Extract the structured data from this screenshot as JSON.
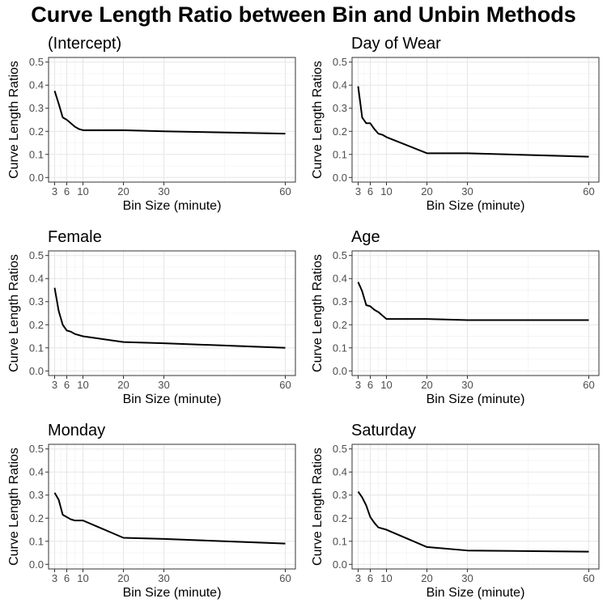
{
  "title": "Curve Length Ratio between Bin and Unbin Methods",
  "chart_data": [
    {
      "type": "line",
      "title": "(Intercept)",
      "xlabel": "Bin Size (minute)",
      "ylabel": "Curve Length Ratios",
      "x_ticks": [
        3,
        6,
        10,
        20,
        30,
        60
      ],
      "y_ticks": [
        "0.0",
        "0.1",
        "0.2",
        "0.3",
        "0.4",
        "0.5"
      ],
      "xlim": [
        1.5,
        62.5
      ],
      "ylim": [
        -0.02,
        0.52
      ],
      "grid": true,
      "x": [
        3,
        4,
        5,
        6,
        7,
        8,
        9,
        10,
        20,
        30,
        60
      ],
      "y": [
        0.375,
        0.32,
        0.26,
        0.25,
        0.235,
        0.22,
        0.21,
        0.205,
        0.205,
        0.2,
        0.19
      ]
    },
    {
      "type": "line",
      "title": "Day of Wear",
      "xlabel": "Bin Size (minute)",
      "ylabel": "Curve Length Ratios",
      "x_ticks": [
        3,
        6,
        10,
        20,
        30,
        60
      ],
      "y_ticks": [
        "0.0",
        "0.1",
        "0.2",
        "0.3",
        "0.4",
        "0.5"
      ],
      "xlim": [
        1.5,
        62.5
      ],
      "ylim": [
        -0.02,
        0.52
      ],
      "grid": true,
      "x": [
        3,
        4,
        5,
        6,
        7,
        8,
        9,
        10,
        20,
        30,
        60
      ],
      "y": [
        0.395,
        0.26,
        0.235,
        0.235,
        0.21,
        0.19,
        0.185,
        0.175,
        0.105,
        0.105,
        0.09
      ]
    },
    {
      "type": "line",
      "title": "Female",
      "xlabel": "Bin Size (minute)",
      "ylabel": "Curve Length Ratios",
      "x_ticks": [
        3,
        6,
        10,
        20,
        30,
        60
      ],
      "y_ticks": [
        "0.0",
        "0.1",
        "0.2",
        "0.3",
        "0.4",
        "0.5"
      ],
      "xlim": [
        1.5,
        62.5
      ],
      "ylim": [
        -0.02,
        0.52
      ],
      "grid": true,
      "x": [
        3,
        4,
        5,
        6,
        7,
        8,
        9,
        10,
        20,
        30,
        60
      ],
      "y": [
        0.36,
        0.26,
        0.2,
        0.175,
        0.17,
        0.16,
        0.155,
        0.15,
        0.125,
        0.12,
        0.1
      ]
    },
    {
      "type": "line",
      "title": "Age",
      "xlabel": "Bin Size (minute)",
      "ylabel": "Curve Length Ratios",
      "x_ticks": [
        3,
        6,
        10,
        20,
        30,
        60
      ],
      "y_ticks": [
        "0.0",
        "0.1",
        "0.2",
        "0.3",
        "0.4",
        "0.5"
      ],
      "xlim": [
        1.5,
        62.5
      ],
      "ylim": [
        -0.02,
        0.52
      ],
      "grid": true,
      "x": [
        3,
        4,
        5,
        6,
        7,
        8,
        9,
        10,
        20,
        30,
        60
      ],
      "y": [
        0.385,
        0.345,
        0.285,
        0.28,
        0.265,
        0.255,
        0.24,
        0.225,
        0.225,
        0.22,
        0.22
      ]
    },
    {
      "type": "line",
      "title": "Monday",
      "xlabel": "Bin Size (minute)",
      "ylabel": "Curve Length Ratios",
      "x_ticks": [
        3,
        6,
        10,
        20,
        30,
        60
      ],
      "y_ticks": [
        "0.0",
        "0.1",
        "0.2",
        "0.3",
        "0.4",
        "0.5"
      ],
      "xlim": [
        1.5,
        62.5
      ],
      "ylim": [
        -0.02,
        0.52
      ],
      "grid": true,
      "x": [
        3,
        4,
        5,
        6,
        7,
        8,
        9,
        10,
        20,
        30,
        60
      ],
      "y": [
        0.31,
        0.28,
        0.215,
        0.205,
        0.195,
        0.19,
        0.19,
        0.19,
        0.115,
        0.11,
        0.09
      ]
    },
    {
      "type": "line",
      "title": "Saturday",
      "xlabel": "Bin Size (minute)",
      "ylabel": "Curve Length Ratios",
      "x_ticks": [
        3,
        6,
        10,
        20,
        30,
        60
      ],
      "y_ticks": [
        "0.0",
        "0.1",
        "0.2",
        "0.3",
        "0.4",
        "0.5"
      ],
      "xlim": [
        1.5,
        62.5
      ],
      "ylim": [
        -0.02,
        0.52
      ],
      "grid": true,
      "x": [
        3,
        4,
        5,
        6,
        7,
        8,
        9,
        10,
        20,
        30,
        60
      ],
      "y": [
        0.315,
        0.29,
        0.255,
        0.205,
        0.18,
        0.16,
        0.155,
        0.15,
        0.075,
        0.06,
        0.055
      ]
    }
  ]
}
